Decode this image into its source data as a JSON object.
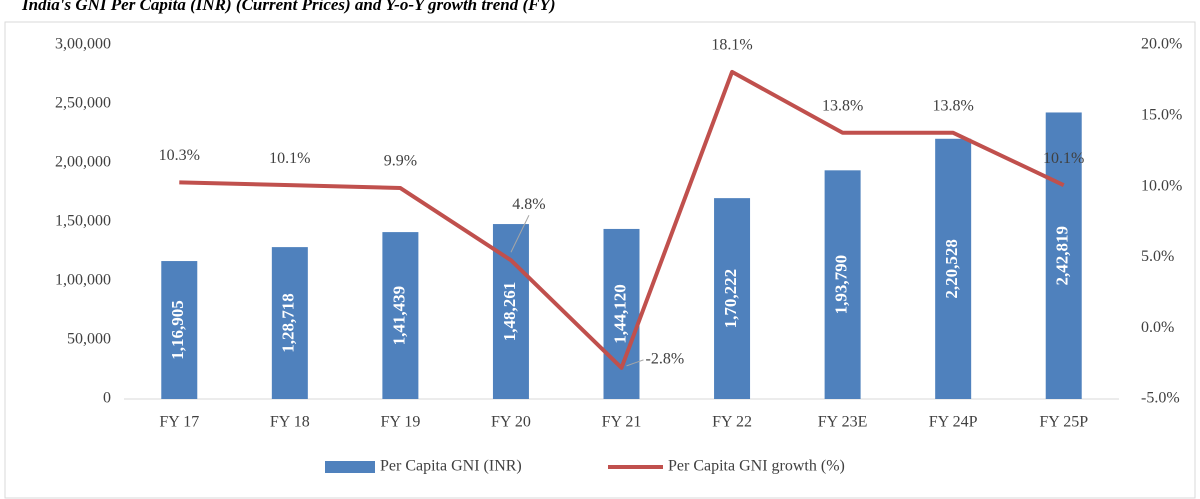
{
  "chart_data": {
    "type": "combo",
    "title": "India's GNI Per Capita (INR) (Current Prices) and Y-o-Y growth trend (FY)",
    "categories": [
      "FY 17",
      "FY 18",
      "FY 19",
      "FY 20",
      "FY 21",
      "FY 22",
      "FY 23E",
      "FY 24P",
      "FY 25P"
    ],
    "series": [
      {
        "name": "Per Capita GNI (INR)",
        "type": "bar",
        "color": "#4f81bd",
        "values": [
          116905,
          128718,
          141439,
          148261,
          144120,
          170222,
          193790,
          220528,
          242819
        ],
        "value_labels": [
          "1,16,905",
          "1,28,718",
          "1,41,439",
          "1,48,261",
          "1,44,120",
          "1,70,222",
          "1,93,790",
          "2,20,528",
          "2,42,819"
        ]
      },
      {
        "name": "Per Capita GNI growth (%)",
        "type": "line",
        "axis": "y2",
        "color": "#c0504d",
        "values": [
          10.3,
          10.1,
          9.9,
          4.8,
          -2.8,
          18.1,
          13.8,
          13.8,
          10.1
        ],
        "value_labels": [
          "10.3%",
          "10.1%",
          "9.9%",
          "4.8%",
          "-2.8%",
          "18.1%",
          "13.8%",
          "13.8%",
          "10.1%"
        ]
      }
    ],
    "ylim": [
      0,
      300000
    ],
    "yticks": [
      0,
      {
        "value": 50000,
        "label": "50,000"
      },
      {
        "value": 100000,
        "label": "1,00,000"
      },
      {
        "value": 150000,
        "label": "1,50,000"
      },
      {
        "value": 200000,
        "label": "2,00,000"
      },
      {
        "value": 250000,
        "label": "2,50,000"
      },
      {
        "value": 300000,
        "label": "3,00,000"
      }
    ],
    "y2lim": [
      -5,
      20
    ],
    "y2ticks": [
      {
        "value": -5,
        "label": "-5.0%"
      },
      {
        "value": 0,
        "label": "0.0%"
      },
      {
        "value": 5,
        "label": "5.0%"
      },
      {
        "value": 10,
        "label": "10.0%"
      },
      {
        "value": 15,
        "label": "15.0%"
      },
      {
        "value": 20,
        "label": "20.0%"
      }
    ],
    "grid": false,
    "legend": "bottom"
  }
}
